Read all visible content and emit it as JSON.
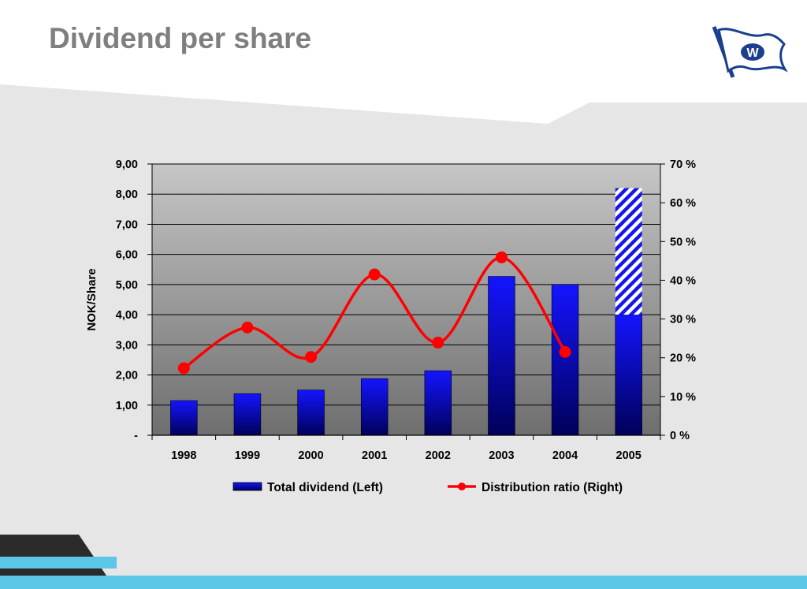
{
  "slide": {
    "title": "Dividend per share",
    "logo_letter": "W"
  },
  "colors": {
    "title": "#7f7f7f",
    "bar_top": "#1414ff",
    "bar_bottom": "#00005a",
    "line": "#ff0000",
    "plot_top": "#c6c6c6",
    "plot_bottom": "#6e6e6e",
    "accent_stripe": "#5bc6e8",
    "dark_shape": "#2b2b2b",
    "logo_blue": "#1b3f8f"
  },
  "chart_data": {
    "type": "bar+line",
    "categories": [
      "1998",
      "1999",
      "2000",
      "2001",
      "2002",
      "2003",
      "2004",
      "2005"
    ],
    "ylabel": "NOK/Share",
    "ylim": [
      0,
      9
    ],
    "y_ticks": [
      "-",
      "1,00",
      "2,00",
      "3,00",
      "4,00",
      "5,00",
      "6,00",
      "7,00",
      "8,00",
      "9,00"
    ],
    "y2lim": [
      0,
      70
    ],
    "y2_ticks": [
      "0 %",
      "10 %",
      "20 %",
      "30 %",
      "40 %",
      "50 %",
      "60 %",
      "70 %"
    ],
    "grid": true,
    "legend_position": "bottom",
    "series": [
      {
        "name": "Total dividend (Left)",
        "type": "bar",
        "axis": "left",
        "values": [
          1.15,
          1.38,
          1.5,
          1.88,
          2.14,
          5.27,
          5.0,
          4.0
        ],
        "hatched_extension": [
          0,
          0,
          0,
          0,
          0,
          0,
          0,
          4.2
        ]
      },
      {
        "name": "Distribution ratio (Right)",
        "type": "line",
        "axis": "right",
        "smooth": true,
        "values": [
          17.3,
          27.8,
          20.2,
          41.5,
          23.9,
          45.9,
          21.5,
          null
        ]
      }
    ]
  }
}
